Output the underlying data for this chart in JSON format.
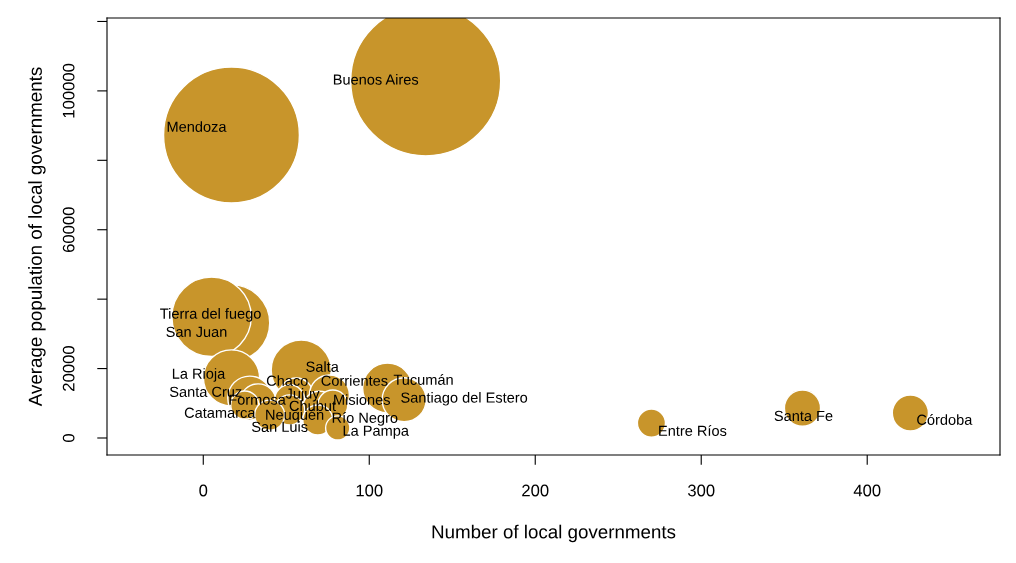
{
  "chart_data": {
    "type": "bubble",
    "xlabel": "Number of local governments",
    "ylabel": "Average population of local governments",
    "xlim": [
      -58,
      480
    ],
    "ylim": [
      -4900,
      121000
    ],
    "xticks": [
      0,
      100,
      200,
      300,
      400
    ],
    "yticks": [
      0,
      20000,
      {
        "value": 40000,
        "label": null
      },
      60000,
      {
        "value": 80000,
        "label": null
      },
      100000,
      {
        "value": 120000,
        "label": null
      }
    ],
    "grid": false,
    "legend": false,
    "series": [
      {
        "color": "#c8952b",
        "x": [
          134,
          17,
          17,
          5,
          17,
          28,
          33,
          25,
          59,
          56,
          52,
          76,
          70,
          52,
          40,
          78,
          69,
          81,
          111,
          121,
          270,
          361,
          426
        ],
        "values": [
          102900,
          87300,
          33100,
          34900,
          17300,
          11500,
          10400,
          9500,
          19600,
          12400,
          11000,
          12400,
          8600,
          8100,
          6600,
          9500,
          5200,
          2900,
          14400,
          11000,
          4300,
          8600,
          7200
        ],
        "sizes": [
          1,
          0.82,
          0.26,
          0.28,
          0.14,
          0.086,
          0.058,
          0.035,
          0.16,
          0.051,
          0.04,
          0.071,
          0.051,
          0.04,
          0.04,
          0.04,
          0.04,
          0.026,
          0.11,
          0.086,
          0.035,
          0.058,
          0.058
        ]
      }
    ],
    "annotations": [
      {
        "text": "Buenos Aires",
        "x": 134,
        "y": 102900
      },
      {
        "text": "Mendoza",
        "x": 17,
        "y": 87300
      },
      {
        "text": "San Juan",
        "x": 17,
        "y": 33100
      },
      {
        "text": "Tierra del fuego",
        "x": 5,
        "y": 34900
      },
      {
        "text": "La Rioja",
        "x": 17,
        "y": 17300
      },
      {
        "text": "Santa Cruz",
        "x": 28,
        "y": 11500
      },
      {
        "text": "Formosa",
        "x": 33,
        "y": 10400
      },
      {
        "text": "Catamarca",
        "x": 25,
        "y": 9500
      },
      {
        "text": "Salta",
        "x": 59,
        "y": 19600
      },
      {
        "text": "Chaco",
        "x": 56,
        "y": 12400
      },
      {
        "text": "Jujuy",
        "x": 52,
        "y": 11000
      },
      {
        "text": "Corrientes",
        "x": 76,
        "y": 12400
      },
      {
        "text": "Chubut",
        "x": 70,
        "y": 8600
      },
      {
        "text": "Neuquén",
        "x": 52,
        "y": 8100
      },
      {
        "text": "San Luis",
        "x": 40,
        "y": 6600
      },
      {
        "text": "Misiones",
        "x": 78,
        "y": 9500
      },
      {
        "text": "Río Negro",
        "x": 69,
        "y": 5200
      },
      {
        "text": "La Pampa",
        "x": 81,
        "y": 2900
      },
      {
        "text": "Tucumán",
        "x": 111,
        "y": 14400
      },
      {
        "text": "Santiago del Estero",
        "x": 121,
        "y": 11000
      },
      {
        "text": "Entre Ríos",
        "x": 270,
        "y": 4300
      },
      {
        "text": "Santa Fe",
        "x": 361,
        "y": 8600
      },
      {
        "text": "Córdoba",
        "x": 426,
        "y": 7200
      }
    ]
  }
}
